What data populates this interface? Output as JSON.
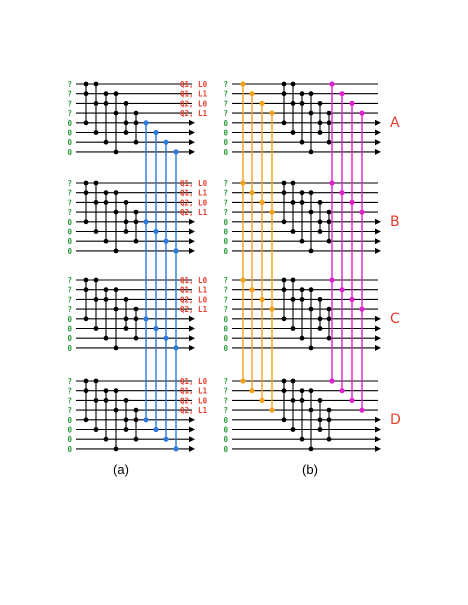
{
  "panels": [
    {
      "caption": "(a)",
      "input_labels": [
        "?",
        "?",
        "?",
        "?",
        "0",
        "0",
        "0",
        "0"
      ],
      "output_labels": [
        "Q1, L0",
        "Q1, L1",
        "Q2, L0",
        "Q2, L1"
      ],
      "block_count": 4,
      "output_arrows_per_block": 4
    },
    {
      "caption": "(b)",
      "input_labels": [
        "?",
        "?",
        "?",
        "?",
        "0",
        "0",
        "0",
        "0"
      ],
      "block_labels": [
        "A",
        "B",
        "C",
        "D"
      ],
      "block_count": 4,
      "output_arrows_per_block": 4
    }
  ],
  "colors": {
    "wire": "#000000",
    "input_label": "#2a9a3a",
    "output_label": "#e83e2e",
    "block_label": "#e83e2e",
    "blue_lines": "#2b7be0",
    "orange_lines": "#f5a21b",
    "magenta_lines": "#e020d0"
  }
}
